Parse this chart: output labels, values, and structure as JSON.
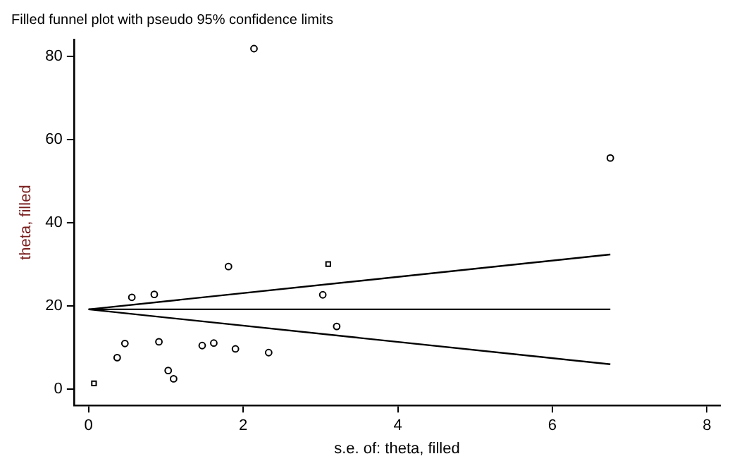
{
  "chart_data": {
    "type": "scatter",
    "title": "Filled funnel plot with pseudo 95% confidence limits",
    "xlabel": "s.e. of: theta, filled",
    "ylabel": "theta, filled",
    "xlim": [
      -0.19,
      8.17
    ],
    "xticks": [
      0,
      2,
      4,
      6,
      8
    ],
    "ylim": [
      -4,
      84
    ],
    "yticks": [
      0,
      20,
      40,
      60,
      80
    ],
    "grid": false,
    "legend": false,
    "series": [
      {
        "marker": "circle",
        "color": "#000000",
        "x": [
          0.37,
          0.47,
          0.56,
          0.85,
          0.91,
          1.03,
          1.1,
          1.47,
          1.62,
          1.81,
          1.9,
          2.14,
          2.33,
          3.03,
          3.21,
          6.75
        ],
        "values": [
          7.5,
          10.9,
          22.0,
          22.7,
          11.3,
          4.4,
          2.4,
          10.4,
          11.0,
          29.4,
          9.6,
          81.8,
          8.7,
          22.6,
          15.0,
          55.5
        ]
      },
      {
        "marker": "square",
        "color": "#000000",
        "x": [
          0.07,
          3.1
        ],
        "values": [
          1.3,
          30.0
        ]
      },
      {
        "type": "line",
        "marker": "none",
        "color": "#000000",
        "x": [
          0,
          6.75
        ],
        "values": [
          19.1,
          19.1
        ]
      },
      {
        "type": "line",
        "marker": "none",
        "color": "#000000",
        "x": [
          0,
          6.75
        ],
        "values": [
          19.1,
          32.3
        ]
      },
      {
        "type": "line",
        "marker": "none",
        "color": "#000000",
        "x": [
          0,
          6.75
        ],
        "values": [
          19.1,
          5.9
        ]
      }
    ]
  }
}
